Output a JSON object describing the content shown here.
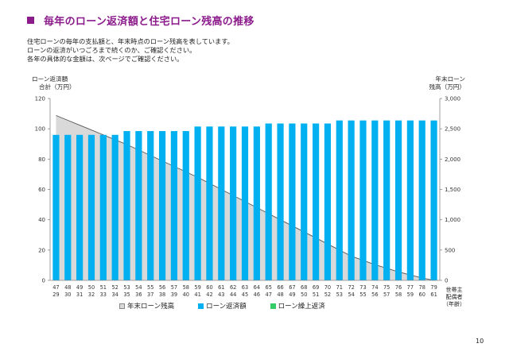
{
  "page": {
    "title": "毎年のローン返済額と住宅ローン残高の推移",
    "description": [
      "住宅ローンの毎年の支払額と、年末時点のローン残高を表しています。",
      "ローンの返済がいつごろまで続くのか、ご確認ください。",
      "各年の具体的な金額は、次ページでご確認ください。"
    ],
    "page_number": "10",
    "title_color": "#8b1a8b"
  },
  "chart_data": {
    "type": "bar",
    "ylabel_left": [
      "ローン返済額",
      "合計（万円）"
    ],
    "ylabel_right": [
      "年末ローン",
      "残高（万円）"
    ],
    "xlabel": [
      "世帯主",
      "配偶者",
      "（年齢）"
    ],
    "ylim_left": [
      0,
      120
    ],
    "yticks_left": [
      "0",
      "20",
      "40",
      "60",
      "80",
      "100",
      "120"
    ],
    "ylim_right": [
      0,
      3000
    ],
    "yticks_right": [
      "0",
      "500",
      "1,000",
      "1,500",
      "2,000",
      "2,500",
      "3,000"
    ],
    "age_head": [
      "47",
      "48",
      "49",
      "50",
      "51",
      "52",
      "53",
      "54",
      "55",
      "56",
      "57",
      "58",
      "59",
      "60",
      "61",
      "62",
      "63",
      "64",
      "65",
      "66",
      "67",
      "68",
      "69",
      "70",
      "71",
      "72",
      "73",
      "74",
      "75",
      "76",
      "77",
      "78",
      "79"
    ],
    "age_spouse": [
      "29",
      "30",
      "31",
      "32",
      "33",
      "34",
      "35",
      "36",
      "37",
      "38",
      "39",
      "40",
      "41",
      "42",
      "43",
      "44",
      "45",
      "46",
      "47",
      "48",
      "49",
      "50",
      "51",
      "52",
      "53",
      "54",
      "55",
      "56",
      "57",
      "58",
      "59",
      "60",
      "61"
    ],
    "series": [
      {
        "name": "年末ローン残高",
        "kind": "area",
        "axis": "right",
        "color": "#d9d9d9",
        "values": [
          2720,
          2640,
          2560,
          2480,
          2400,
          2320,
          2240,
          2150,
          2060,
          1970,
          1880,
          1790,
          1700,
          1600,
          1500,
          1400,
          1300,
          1200,
          1100,
          1000,
          900,
          800,
          700,
          600,
          500,
          400,
          330,
          260,
          200,
          140,
          90,
          40,
          0
        ]
      },
      {
        "name": "ローン返済額",
        "kind": "bar",
        "axis": "left",
        "color": "#00b0f0",
        "values": [
          96,
          96,
          96,
          96,
          96,
          96,
          98.5,
          98.5,
          98.5,
          98.5,
          98.5,
          98.5,
          101.5,
          101.5,
          101.5,
          101.5,
          101.5,
          101.5,
          103.5,
          103.5,
          103.5,
          103.5,
          103.5,
          103.5,
          105.5,
          105.5,
          105.5,
          105.5,
          105.5,
          105.5,
          105.5,
          105.5,
          105.5
        ]
      },
      {
        "name": "ローン繰上返済",
        "kind": "bar",
        "axis": "left",
        "color": "#33cc66",
        "values": [
          0,
          0,
          0,
          0,
          0,
          0,
          0,
          0,
          0,
          0,
          0,
          0,
          0,
          0,
          0,
          0,
          0,
          0,
          0,
          0,
          0,
          0,
          0,
          0,
          0,
          0,
          0,
          0,
          0,
          0,
          0,
          0,
          0
        ]
      }
    ]
  }
}
